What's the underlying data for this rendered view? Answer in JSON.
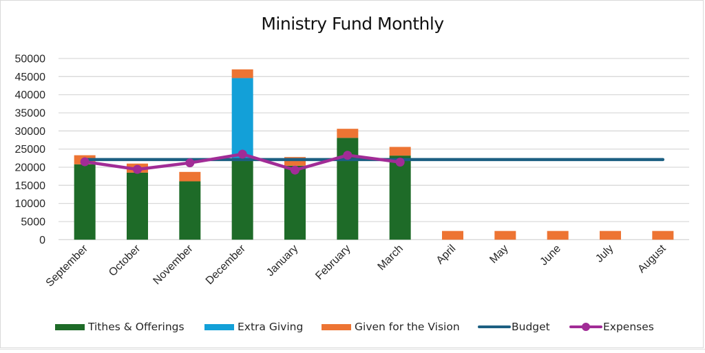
{
  "chart_data": {
    "type": "bar",
    "stacked": true,
    "title": "Ministry Fund Monthly",
    "xlabel": "",
    "ylabel": "",
    "ylim": [
      0,
      50000
    ],
    "yticks": [
      0,
      5000,
      10000,
      15000,
      20000,
      25000,
      30000,
      35000,
      40000,
      45000,
      50000
    ],
    "grid": true,
    "legend_position": "bottom",
    "categories": [
      "September",
      "October",
      "November",
      "December",
      "January",
      "February",
      "March",
      "April",
      "May",
      "June",
      "July",
      "August"
    ],
    "series": [
      {
        "name": "Tithes & Offerings",
        "type": "bar",
        "color": "#1e6b28",
        "values": [
          20800,
          18500,
          16100,
          21800,
          20400,
          28100,
          23200,
          0,
          0,
          0,
          0,
          0
        ]
      },
      {
        "name": "Extra Giving",
        "type": "bar",
        "color": "#13a0d8",
        "values": [
          0,
          0,
          0,
          22800,
          0,
          0,
          0,
          0,
          0,
          0,
          0,
          0
        ]
      },
      {
        "name": "Given for the Vision",
        "type": "bar",
        "color": "#ed7433",
        "values": [
          2500,
          2500,
          2600,
          2400,
          2400,
          2500,
          2400,
          2400,
          2400,
          2400,
          2400,
          2400
        ]
      },
      {
        "name": "Budget",
        "type": "line",
        "color": "#1c5f82",
        "values": [
          22100,
          22100,
          22100,
          22100,
          22100,
          22100,
          22100,
          22100,
          22100,
          22100,
          22100,
          22100
        ]
      },
      {
        "name": "Expenses",
        "type": "line",
        "marker": "circle",
        "color": "#a12c96",
        "values": [
          21500,
          19400,
          21200,
          23600,
          19200,
          23300,
          21400,
          null,
          null,
          null,
          null,
          null
        ]
      }
    ]
  }
}
